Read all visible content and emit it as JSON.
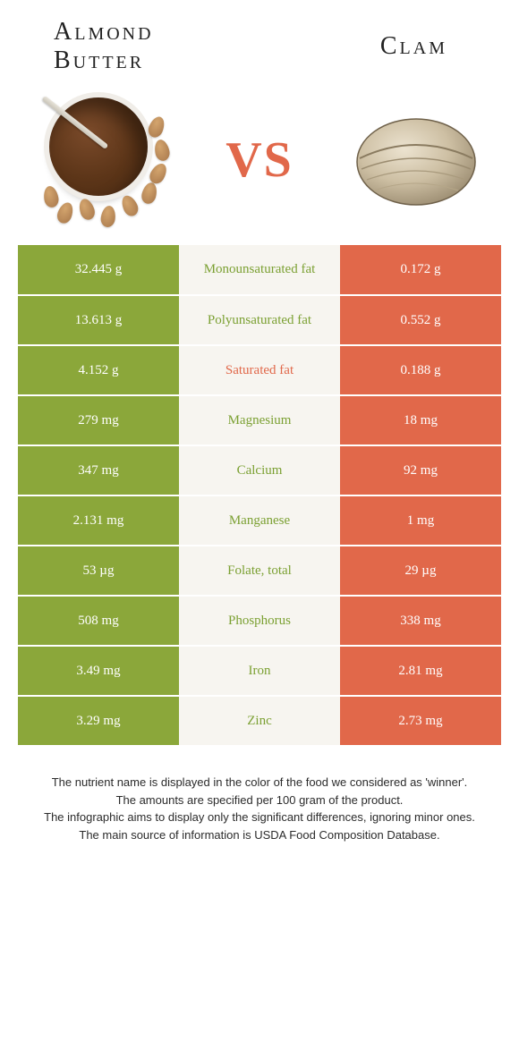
{
  "colors": {
    "left_bg": "#8ba73a",
    "right_bg": "#e1684a",
    "mid_bg": "#f7f5f0",
    "mid_left_text": "#7ba032",
    "mid_right_text": "#e1684a",
    "vs": "#e1684a"
  },
  "header": {
    "left_title_line1": "Almond",
    "left_title_line2": "Butter",
    "right_title": "Clam",
    "vs": "VS"
  },
  "rows": [
    {
      "left": "32.445 g",
      "label": "Monounsaturated fat",
      "right": "0.172 g",
      "winner": "left"
    },
    {
      "left": "13.613 g",
      "label": "Polyunsaturated fat",
      "right": "0.552 g",
      "winner": "left"
    },
    {
      "left": "4.152 g",
      "label": "Saturated fat",
      "right": "0.188 g",
      "winner": "right"
    },
    {
      "left": "279 mg",
      "label": "Magnesium",
      "right": "18 mg",
      "winner": "left"
    },
    {
      "left": "347 mg",
      "label": "Calcium",
      "right": "92 mg",
      "winner": "left"
    },
    {
      "left": "2.131 mg",
      "label": "Manganese",
      "right": "1 mg",
      "winner": "left"
    },
    {
      "left": "53 µg",
      "label": "Folate, total",
      "right": "29 µg",
      "winner": "left"
    },
    {
      "left": "508 mg",
      "label": "Phosphorus",
      "right": "338 mg",
      "winner": "left"
    },
    {
      "left": "3.49 mg",
      "label": "Iron",
      "right": "2.81 mg",
      "winner": "left"
    },
    {
      "left": "3.29 mg",
      "label": "Zinc",
      "right": "2.73 mg",
      "winner": "left"
    }
  ],
  "footer": {
    "line1": "The nutrient name is displayed in the color of the food we considered as 'winner'.",
    "line2": "The amounts are specified per 100 gram of the product.",
    "line3": "The infographic aims to display only the significant differences, ignoring minor ones.",
    "line4": "The main source of information is USDA Food Composition Database."
  }
}
